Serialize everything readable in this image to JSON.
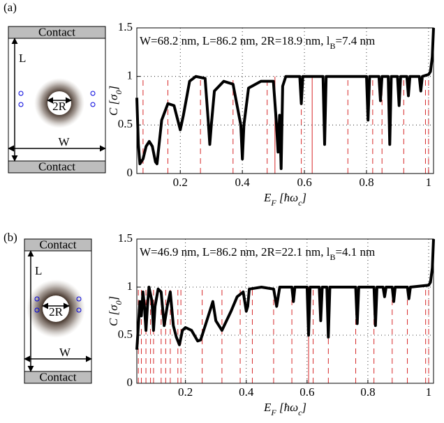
{
  "chart_data": [
    {
      "type": "line",
      "panel_label": "(a)",
      "schematic": {
        "contact_top": "Contact",
        "contact_bottom": "Contact",
        "length": "L",
        "width": "W",
        "diameter": "2R"
      },
      "annotation": [
        "W=68.2 nm, L=86.2 nm, 2R=18.9 nm, l",
        "B",
        "=7.4 nm"
      ],
      "xlabel": [
        "E",
        "F",
        " [ħω",
        "c",
        "]"
      ],
      "ylabel": [
        "C",
        " [σ",
        "0",
        "]"
      ],
      "xlim": [
        0.06,
        1.016
      ],
      "ylim": [
        0,
        1.5
      ],
      "xticks": [
        0.2,
        0.4,
        0.6,
        0.8,
        1
      ],
      "yticks": [
        0,
        0.5,
        1,
        1.5
      ],
      "grid": true,
      "color": "#000000",
      "vline_color": "#d62728",
      "x": [
        0.06,
        0.065,
        0.07,
        0.08,
        0.09,
        0.1,
        0.11,
        0.12,
        0.125,
        0.14,
        0.16,
        0.18,
        0.2,
        0.21,
        0.23,
        0.25,
        0.28,
        0.29,
        0.295,
        0.3,
        0.31,
        0.34,
        0.37,
        0.395,
        0.4,
        0.405,
        0.42,
        0.46,
        0.5,
        0.51,
        0.515,
        0.52,
        0.525,
        0.53,
        0.54,
        0.585,
        0.59,
        0.595,
        0.66,
        0.665,
        0.67,
        0.8,
        0.805,
        0.81,
        0.84,
        0.845,
        0.85,
        0.87,
        0.875,
        0.88,
        0.9,
        0.905,
        0.91,
        0.93,
        0.935,
        0.94,
        0.97,
        0.975,
        0.98,
        1.0,
        1.006,
        1.012,
        1.016
      ],
      "values": [
        0.78,
        0.3,
        0.1,
        0.15,
        0.28,
        0.33,
        0.28,
        0.12,
        0.1,
        0.55,
        0.72,
        0.7,
        0.45,
        0.6,
        0.95,
        1.0,
        0.98,
        0.55,
        0.3,
        0.5,
        0.85,
        0.95,
        0.92,
        0.5,
        0.15,
        0.5,
        0.88,
        0.95,
        0.95,
        0.5,
        0.22,
        0.6,
        0.05,
        0.9,
        1.0,
        1.0,
        0.72,
        1.0,
        1.0,
        0.3,
        1.0,
        1.0,
        0.55,
        1.0,
        1.0,
        0.75,
        1.0,
        1.0,
        0.3,
        1.0,
        1.0,
        0.7,
        1.0,
        1.0,
        0.8,
        1.0,
        1.0,
        0.85,
        1.0,
        1.02,
        1.05,
        1.2,
        1.5
      ],
      "vlines": [
        0.08,
        0.16,
        0.265,
        0.37,
        0.48,
        0.59,
        0.74,
        0.82,
        0.85,
        0.92,
        0.99,
        1.0
      ],
      "vlines_solid": [
        0.505,
        0.625
      ]
    },
    {
      "type": "line",
      "panel_label": "(b)",
      "schematic": {
        "contact_top": "Contact",
        "contact_bottom": "Contact",
        "length": "L",
        "width": "W",
        "diameter": "2R"
      },
      "annotation": [
        "W=46.9 nm, L=86.2 nm, 2R=22.1 nm, l",
        "B",
        "=4.1 nm"
      ],
      "xlabel": [
        "E",
        "F",
        " [ħω",
        "c",
        "]"
      ],
      "ylabel": [
        "C",
        " [σ",
        "0",
        "]"
      ],
      "xlim": [
        0.04,
        1.016
      ],
      "ylim": [
        0,
        1.5
      ],
      "xticks": [
        0.2,
        0.4,
        0.6,
        0.8,
        1
      ],
      "yticks": [
        0,
        0.5,
        1,
        1.5
      ],
      "grid": true,
      "color": "#000000",
      "vline_color": "#d62728",
      "x": [
        0.04,
        0.045,
        0.05,
        0.055,
        0.06,
        0.065,
        0.07,
        0.075,
        0.08,
        0.09,
        0.095,
        0.1,
        0.11,
        0.12,
        0.13,
        0.14,
        0.15,
        0.16,
        0.17,
        0.18,
        0.19,
        0.2,
        0.22,
        0.24,
        0.25,
        0.27,
        0.29,
        0.3,
        0.32,
        0.35,
        0.37,
        0.39,
        0.4,
        0.405,
        0.41,
        0.45,
        0.49,
        0.5,
        0.51,
        0.55,
        0.555,
        0.56,
        0.6,
        0.605,
        0.61,
        0.64,
        0.645,
        0.65,
        0.665,
        0.67,
        0.675,
        0.76,
        0.765,
        0.77,
        0.82,
        0.825,
        0.83,
        0.85,
        0.855,
        0.86,
        0.88,
        0.885,
        0.89,
        0.93,
        0.935,
        0.94,
        1.0,
        1.006,
        1.012,
        1.016
      ],
      "values": [
        0.35,
        0.6,
        0.85,
        0.7,
        0.95,
        0.8,
        0.55,
        0.8,
        1.0,
        0.85,
        0.55,
        0.8,
        0.98,
        0.95,
        0.6,
        0.8,
        0.95,
        0.6,
        0.48,
        0.4,
        0.55,
        0.58,
        0.55,
        0.44,
        0.45,
        0.65,
        0.85,
        0.65,
        0.55,
        0.75,
        0.9,
        0.95,
        0.75,
        0.8,
        0.98,
        1.0,
        0.98,
        0.8,
        1.0,
        1.0,
        0.85,
        1.0,
        1.0,
        0.5,
        1.0,
        1.0,
        0.65,
        1.0,
        1.0,
        0.48,
        1.0,
        1.0,
        0.62,
        1.0,
        1.0,
        0.6,
        1.0,
        1.0,
        0.9,
        1.0,
        1.0,
        0.85,
        1.0,
        1.0,
        0.88,
        1.0,
        1.02,
        1.05,
        1.2,
        1.5
      ],
      "vlines": [
        0.045,
        0.055,
        0.07,
        0.085,
        0.095,
        0.12,
        0.135,
        0.15,
        0.175,
        0.185,
        0.255,
        0.32,
        0.38,
        0.42,
        0.49,
        0.55,
        0.62,
        0.67,
        0.76,
        0.82,
        0.88,
        0.93,
        0.99,
        1.0
      ],
      "vlines_solid": [
        0.605
      ]
    }
  ]
}
